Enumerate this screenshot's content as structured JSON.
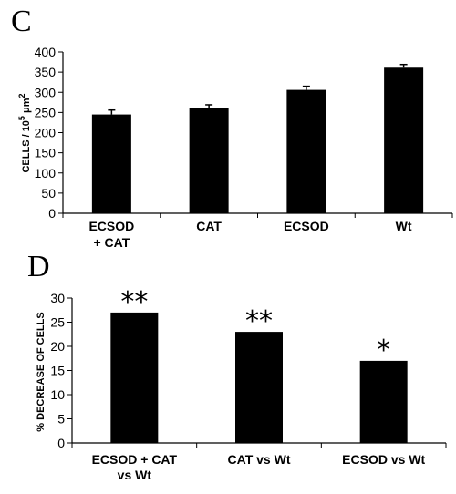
{
  "chart_data": [
    {
      "type": "bar",
      "panel_label": "C",
      "ylabel": {
        "prefix": "CELLS / 10",
        "sup1": "5",
        "mid": " μm",
        "sup2": "2"
      },
      "ylim": [
        0,
        400
      ],
      "yticks": [
        0,
        50,
        100,
        150,
        200,
        250,
        300,
        350,
        400
      ],
      "categories": [
        [
          "ECSOD",
          "+ CAT"
        ],
        [
          "CAT"
        ],
        [
          "ECSOD"
        ],
        [
          "Wt"
        ]
      ],
      "values": [
        245,
        260,
        306,
        361
      ],
      "errors": [
        11,
        9,
        9,
        8
      ],
      "color": "#000000"
    },
    {
      "type": "bar",
      "panel_label": "D",
      "ylabel": "% DECREASE OF CELLS",
      "ylim": [
        0,
        30
      ],
      "yticks": [
        0,
        5,
        10,
        15,
        20,
        25,
        30
      ],
      "categories": [
        [
          "ECSOD + CAT",
          "vs Wt"
        ],
        [
          "CAT vs Wt"
        ],
        [
          "ECSOD vs Wt"
        ]
      ],
      "values": [
        27,
        23,
        17
      ],
      "annotations": [
        "**",
        "**",
        "*"
      ],
      "color": "#000000"
    }
  ]
}
